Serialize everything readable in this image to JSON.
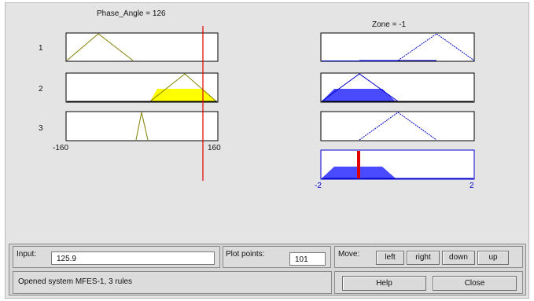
{
  "input_title": "Phase_Angle = 126",
  "output_title": "Zone = -1",
  "rule_numbers": [
    "1",
    "2",
    "3"
  ],
  "input_axis": {
    "min_label": "-160",
    "max_label": "160",
    "range": [
      -160,
      160
    ],
    "value": 126
  },
  "output_axis": {
    "min_label": "-2",
    "max_label": "2",
    "range": [
      -2,
      2
    ],
    "value": -0.75
  },
  "colors": {
    "input_fill": "#ffff00",
    "output_fill": "#4a4aff",
    "input_line": "#808000",
    "output_line": "#0000cc",
    "indicator": "#e00000"
  },
  "controls": {
    "input_label": "Input:",
    "input_value": "125.9",
    "plot_points_label": "Plot points:",
    "plot_points_value": "101",
    "move_label": "Move:",
    "move_buttons": [
      "left",
      "right",
      "down",
      "up"
    ],
    "help_label": "Help",
    "close_label": "Close"
  },
  "status_text": "Opened system MFES-1, 3 rules"
}
